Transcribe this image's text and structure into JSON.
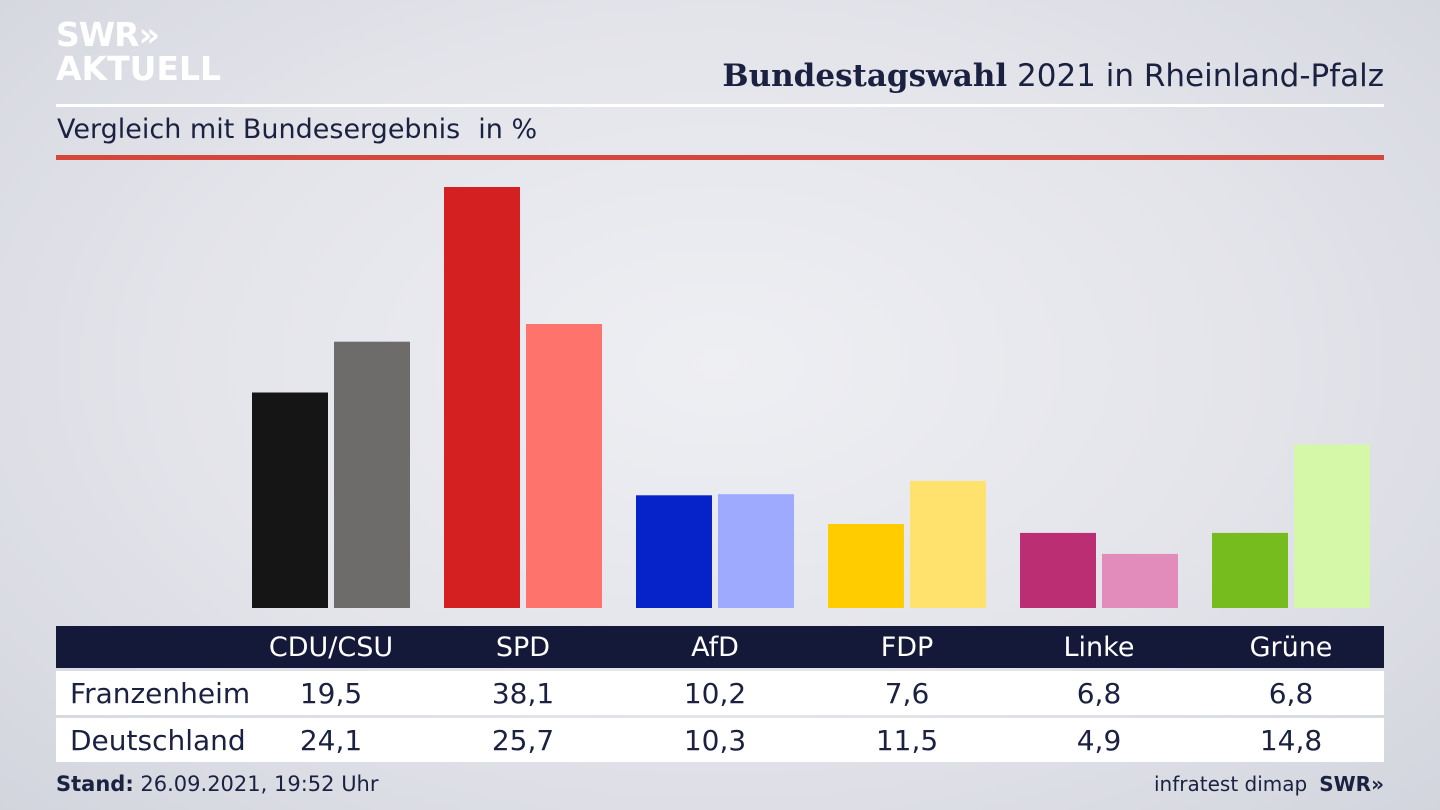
{
  "brand": {
    "logo_line1": "SWR»",
    "logo_line2": "AKTUELL",
    "footer_logo": "SWR»"
  },
  "header": {
    "title_bold": "Bundestagswahl",
    "title_rest": " 2021 in Rheinland-Pfalz"
  },
  "subtitle": {
    "text": "Vergleich mit Bundesergebnis",
    "unit": "in %"
  },
  "footer": {
    "stand_label": "Stand:",
    "stand_value": "26.09.2021, 19:52 Uhr",
    "source": "infratest dimap"
  },
  "colors": {
    "accent_red": "#d4473a",
    "table_header_bg": "#14193a",
    "franzenheim": [
      "#151515",
      "#d42020",
      "#0523c8",
      "#ffcc00",
      "#bb2e74",
      "#77bc1f"
    ],
    "deutschland": [
      "#6e6c6b",
      "#ff736d",
      "#9daafd",
      "#ffe16e",
      "#e18cba",
      "#d4f7a8"
    ]
  },
  "table": {
    "headers": [
      "CDU/CSU",
      "SPD",
      "AfD",
      "FDP",
      "Linke",
      "Grüne"
    ],
    "rows": [
      {
        "label": "Franzenheim",
        "values": [
          "19,5",
          "38,1",
          "10,2",
          "7,6",
          "6,8",
          "6,8"
        ]
      },
      {
        "label": "Deutschland",
        "values": [
          "24,1",
          "25,7",
          "10,3",
          "11,5",
          "4,9",
          "14,8"
        ]
      }
    ]
  },
  "chart_data": {
    "type": "bar",
    "categories": [
      "CDU/CSU",
      "SPD",
      "AfD",
      "FDP",
      "Linke",
      "Grüne"
    ],
    "series": [
      {
        "name": "Franzenheim",
        "values": [
          19.5,
          38.1,
          10.2,
          7.6,
          6.8,
          6.8
        ]
      },
      {
        "name": "Deutschland",
        "values": [
          24.1,
          25.7,
          10.3,
          11.5,
          4.9,
          14.8
        ]
      }
    ],
    "title": "Bundestagswahl 2021 in Rheinland-Pfalz",
    "subtitle": "Vergleich mit Bundesergebnis",
    "unit": "in %",
    "xlabel": "",
    "ylabel": "",
    "ylim": [
      0,
      38.1
    ],
    "grid": false,
    "legend": "table below chart"
  }
}
